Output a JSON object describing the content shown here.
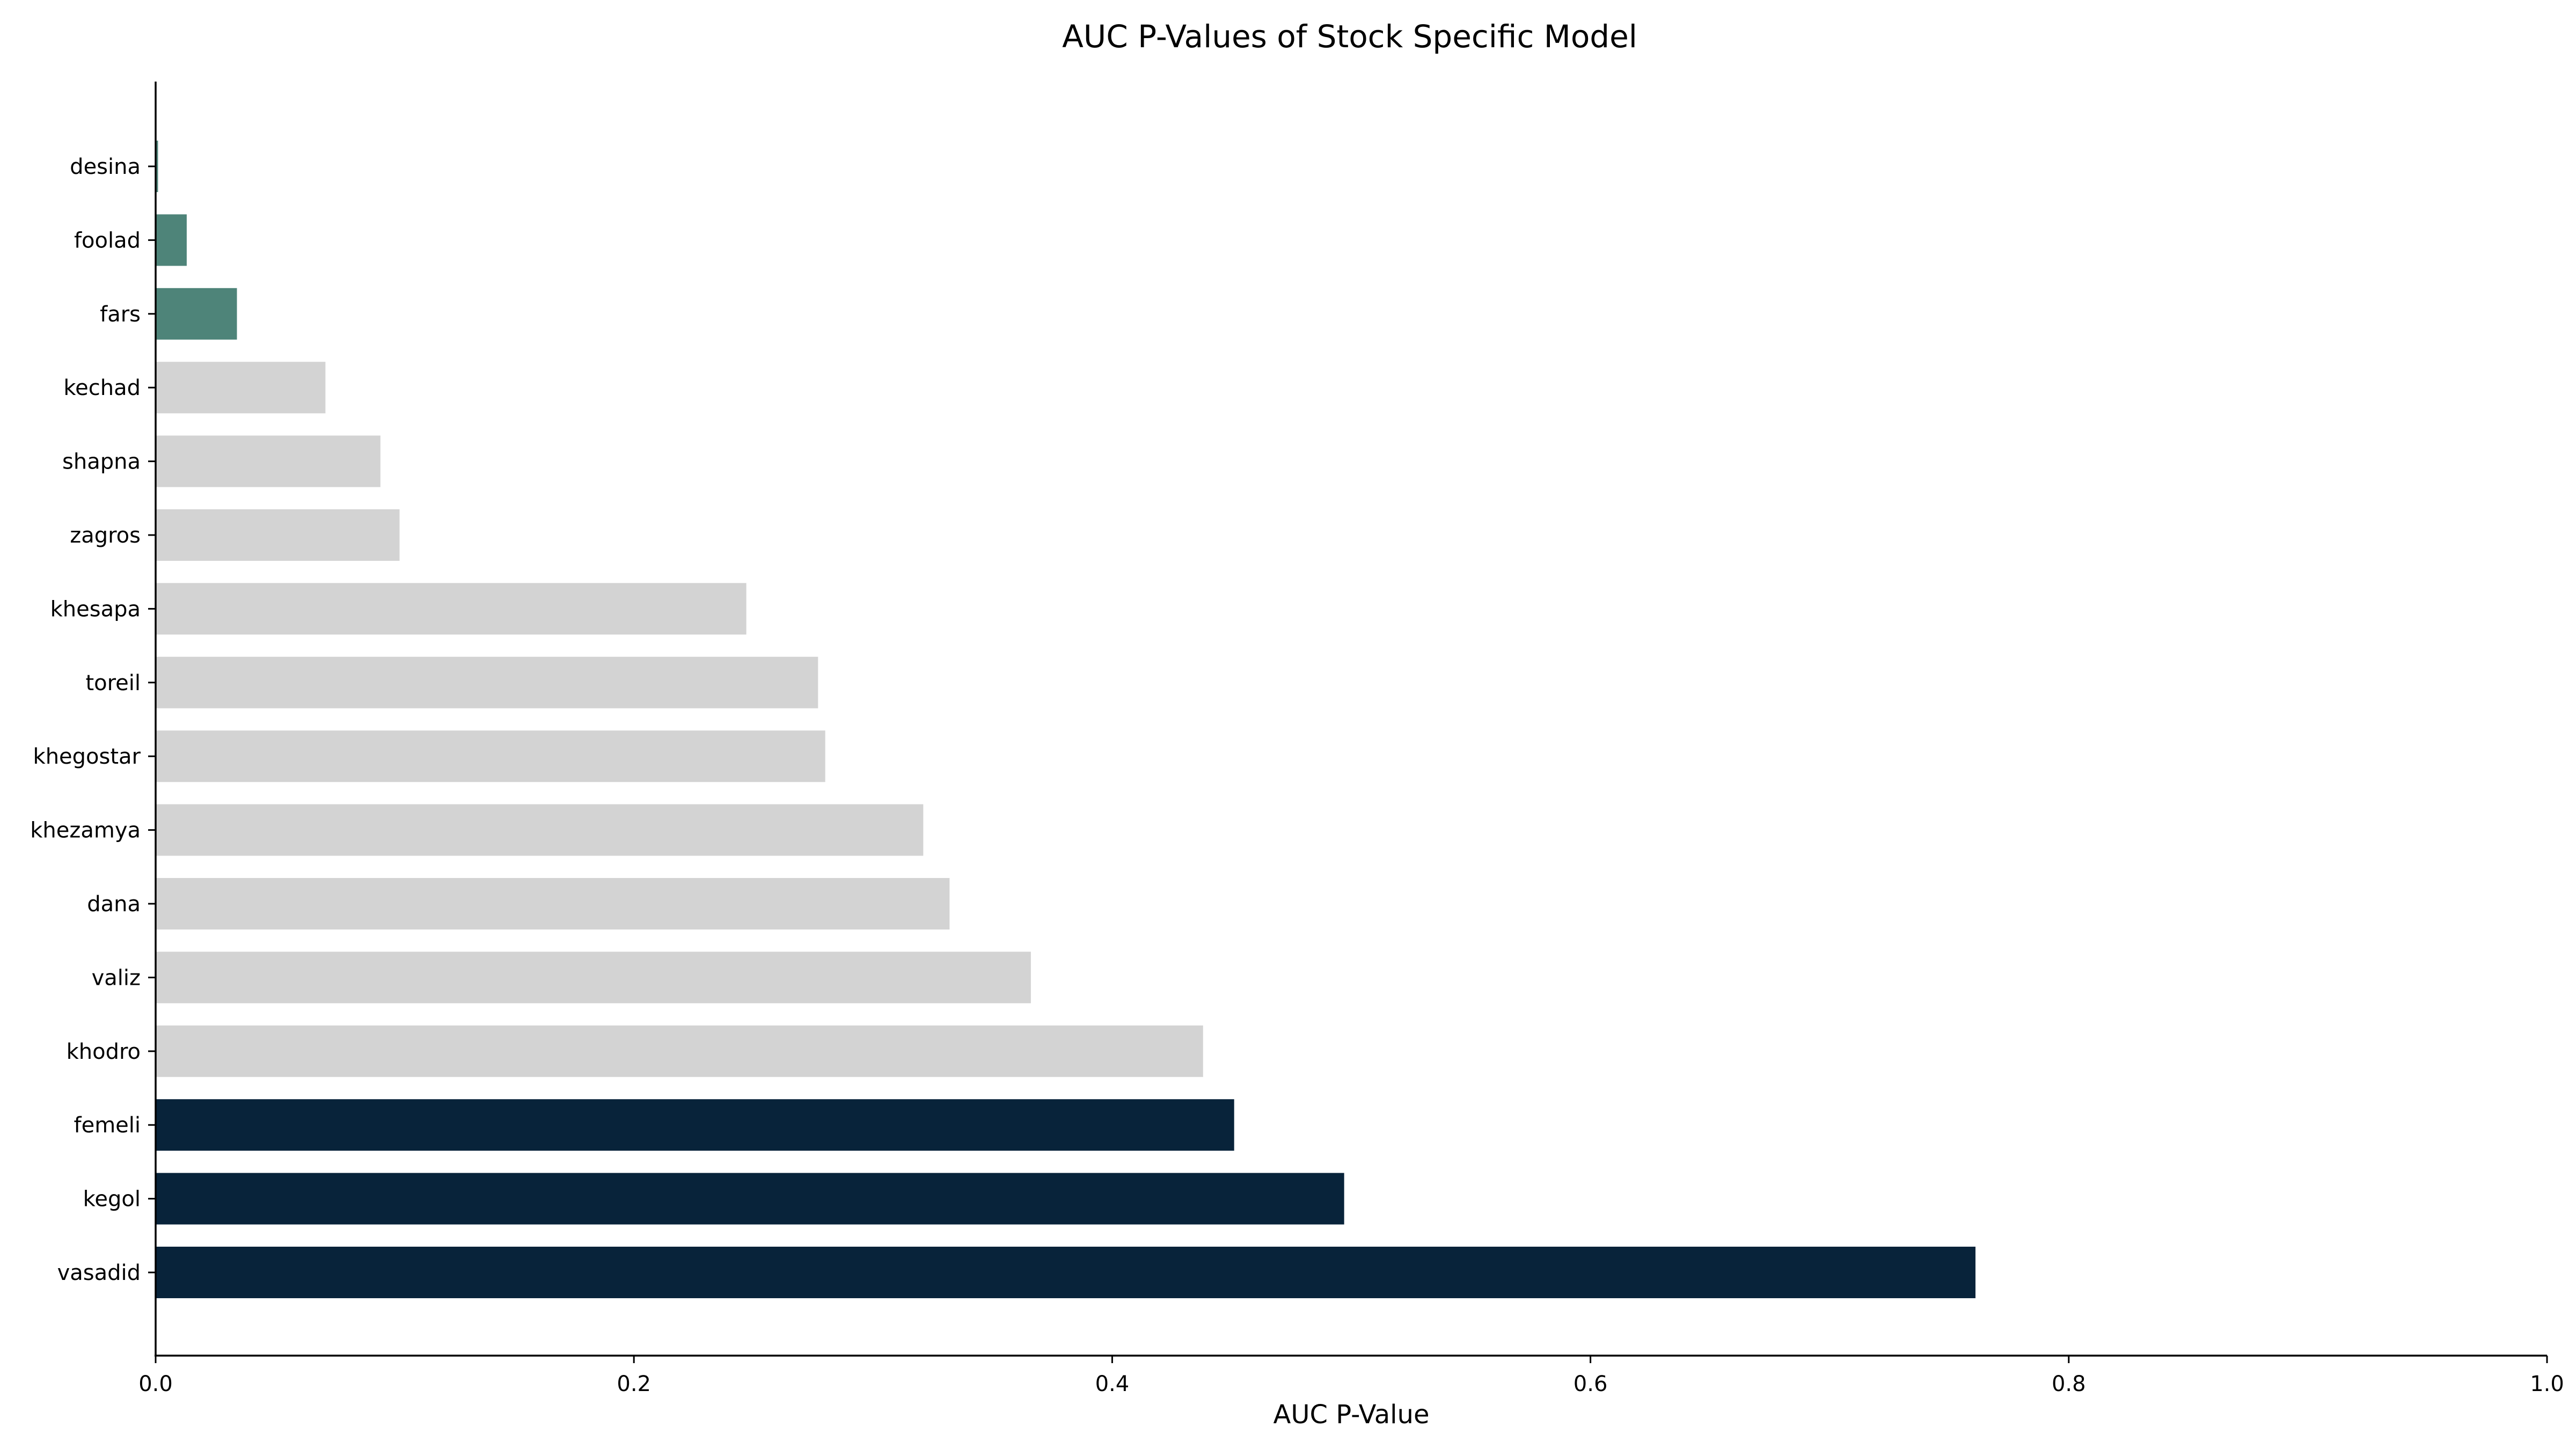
{
  "chart_data": {
    "type": "bar",
    "orientation": "horizontal",
    "title": "AUC P-Values of Stock Specific Model",
    "xlabel": "AUC P-Value",
    "ylabel": "",
    "xlim": [
      0,
      1.0
    ],
    "xticks": [
      "0.0",
      "0.2",
      "0.4",
      "0.6",
      "0.8",
      "1.0"
    ],
    "grid": false,
    "legend": false,
    "colors": {
      "teal": "#4e8479",
      "grey": "#d3d3d3",
      "navy": "#08233a"
    },
    "categories": [
      "desina",
      "foolad",
      "fars",
      "kechad",
      "shapna",
      "zagros",
      "khesapa",
      "toreil",
      "khegostar",
      "khezamya",
      "dana",
      "valiz",
      "khodro",
      "femeli",
      "kegol",
      "vasadid"
    ],
    "values": [
      0.001,
      0.013,
      0.034,
      0.071,
      0.094,
      0.102,
      0.247,
      0.277,
      0.28,
      0.321,
      0.332,
      0.366,
      0.438,
      0.451,
      0.497,
      0.761
    ],
    "bar_colors": [
      "teal",
      "teal",
      "teal",
      "grey",
      "grey",
      "grey",
      "grey",
      "grey",
      "grey",
      "grey",
      "grey",
      "grey",
      "grey",
      "navy",
      "navy",
      "navy"
    ]
  }
}
